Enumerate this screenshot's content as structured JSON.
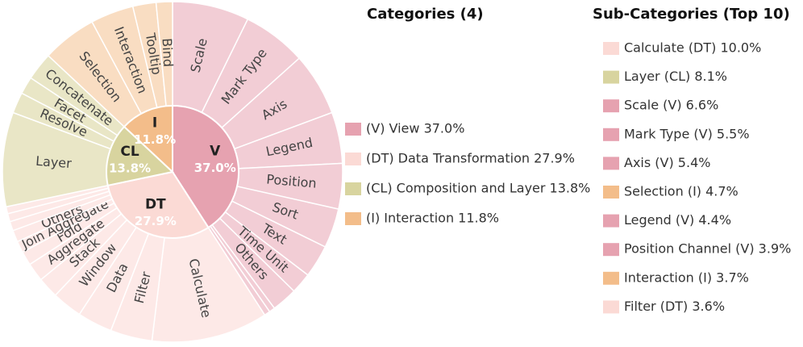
{
  "chart_data": {
    "type": "sunburst",
    "categories_title": "Categories (4)",
    "subcategories_title": "Sub-Categories (Top 10)",
    "categories": [
      {
        "name": "V",
        "value": 37.0,
        "value_label": "37.0%",
        "legend_label": "(V) View 37.0%",
        "color": "#e6a2b0",
        "child_color": "#f2cdd5",
        "children": [
          {
            "name": "Scale",
            "value": 6.6
          },
          {
            "name": "Mark Type",
            "value": 5.5
          },
          {
            "name": "Axis",
            "value": 5.4
          },
          {
            "name": "Legend",
            "value": 4.4
          },
          {
            "name": "Position",
            "value": 3.9
          },
          {
            "name": "Sort",
            "value": 3.4
          },
          {
            "name": "Text",
            "value": 2.8
          },
          {
            "name": "Time Unit",
            "value": 1.8
          },
          {
            "name": "Others",
            "value": 2.2
          },
          {
            "name": null,
            "value": 0.5
          },
          {
            "name": null,
            "value": 0.5
          }
        ]
      },
      {
        "name": "DT",
        "value": 27.9,
        "value_label": "27.9%",
        "legend_label": "(DT) Data Transformation 27.9%",
        "color": "#fbdad5",
        "child_color": "#fde9e7",
        "children": [
          {
            "name": "Calculate",
            "value": 10.0
          },
          {
            "name": "Filter",
            "value": 3.6
          },
          {
            "name": "Data",
            "value": 3.0
          },
          {
            "name": "Window",
            "value": 2.6
          },
          {
            "name": "Stack",
            "value": 1.8
          },
          {
            "name": "Aggregate",
            "value": 1.6
          },
          {
            "name": "Fold",
            "value": 1.2
          },
          {
            "name": "Join Aggregate",
            "value": 1.0
          },
          {
            "name": "Others",
            "value": 1.0
          },
          {
            "name": null,
            "value": 0.8
          },
          {
            "name": null,
            "value": 0.7
          },
          {
            "name": null,
            "value": 0.6
          }
        ]
      },
      {
        "name": "CL",
        "value": 13.8,
        "value_label": "13.8%",
        "legend_label": "(CL) Composition and Layer 13.8%",
        "color": "#d8d49f",
        "child_color": "#e9e6c6",
        "children": [
          {
            "name": "Layer",
            "value": 8.1
          },
          {
            "name": "Resolve",
            "value": 1.8
          },
          {
            "name": "Facet",
            "value": 1.5
          },
          {
            "name": "Concatenate",
            "value": 2.4
          }
        ]
      },
      {
        "name": "I",
        "value": 11.8,
        "value_label": "11.8%",
        "legend_label": "(I) Interaction 11.8%",
        "color": "#f3bd8a",
        "child_color": "#f9ddc2",
        "children": [
          {
            "name": "Selection",
            "value": 4.7
          },
          {
            "name": "Interaction",
            "value": 3.7
          },
          {
            "name": "Tooltip",
            "value": 2.0
          },
          {
            "name": "Bind",
            "value": 1.4
          }
        ]
      }
    ],
    "top_subcategories": [
      {
        "label": "Calculate (DT) 10.0%",
        "color": "#fbdad5"
      },
      {
        "label": "Layer (CL) 8.1%",
        "color": "#d8d49f"
      },
      {
        "label": "Scale (V) 6.6%",
        "color": "#e6a2b0"
      },
      {
        "label": "Mark Type (V) 5.5%",
        "color": "#e6a2b0"
      },
      {
        "label": "Axis (V) 5.4%",
        "color": "#e6a2b0"
      },
      {
        "label": "Selection (I) 4.7%",
        "color": "#f3bd8a"
      },
      {
        "label": "Legend (V) 4.4%",
        "color": "#e6a2b0"
      },
      {
        "label": "Position Channel (V) 3.9%",
        "color": "#e6a2b0"
      },
      {
        "label": "Interaction (I) 3.7%",
        "color": "#f3bd8a"
      },
      {
        "label": "Filter (DT) 3.6%",
        "color": "#fbdad5"
      }
    ]
  }
}
